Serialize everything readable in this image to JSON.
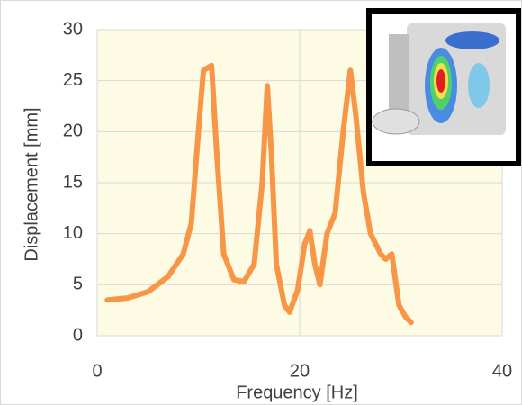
{
  "chart_data": {
    "type": "line",
    "x_label": "Frequency [Hz]",
    "y_label": "Displacement [mm]",
    "x": [
      1,
      3,
      5,
      7,
      8.5,
      9.3,
      10,
      10.5,
      11.3,
      11.8,
      12.5,
      13.5,
      14.5,
      15.5,
      16.3,
      16.8,
      17.2,
      17.7,
      18.5,
      19,
      19.8,
      20.5,
      21,
      21.5,
      22,
      22.7,
      23.5,
      24.3,
      25,
      25.5,
      26.3,
      27,
      28,
      28.5,
      29.1,
      29.8,
      30.5,
      31
    ],
    "values": [
      3.5,
      3.7,
      4.3,
      5.8,
      8,
      11,
      20,
      26,
      26.5,
      18,
      8,
      5.5,
      5.3,
      7,
      15,
      24.5,
      18,
      7,
      3,
      2.3,
      4.5,
      9,
      10.3,
      7,
      5,
      10,
      12,
      20,
      26,
      22,
      14,
      10,
      8,
      7.5,
      8,
      3,
      1.8,
      1.3
    ],
    "color": "#f79646",
    "xlim": [
      0,
      40
    ],
    "xticks": [
      0,
      20,
      40
    ],
    "ylim": [
      0,
      30
    ],
    "yticks": [
      0,
      5,
      10,
      15,
      20,
      25,
      30
    ],
    "grid": true
  }
}
